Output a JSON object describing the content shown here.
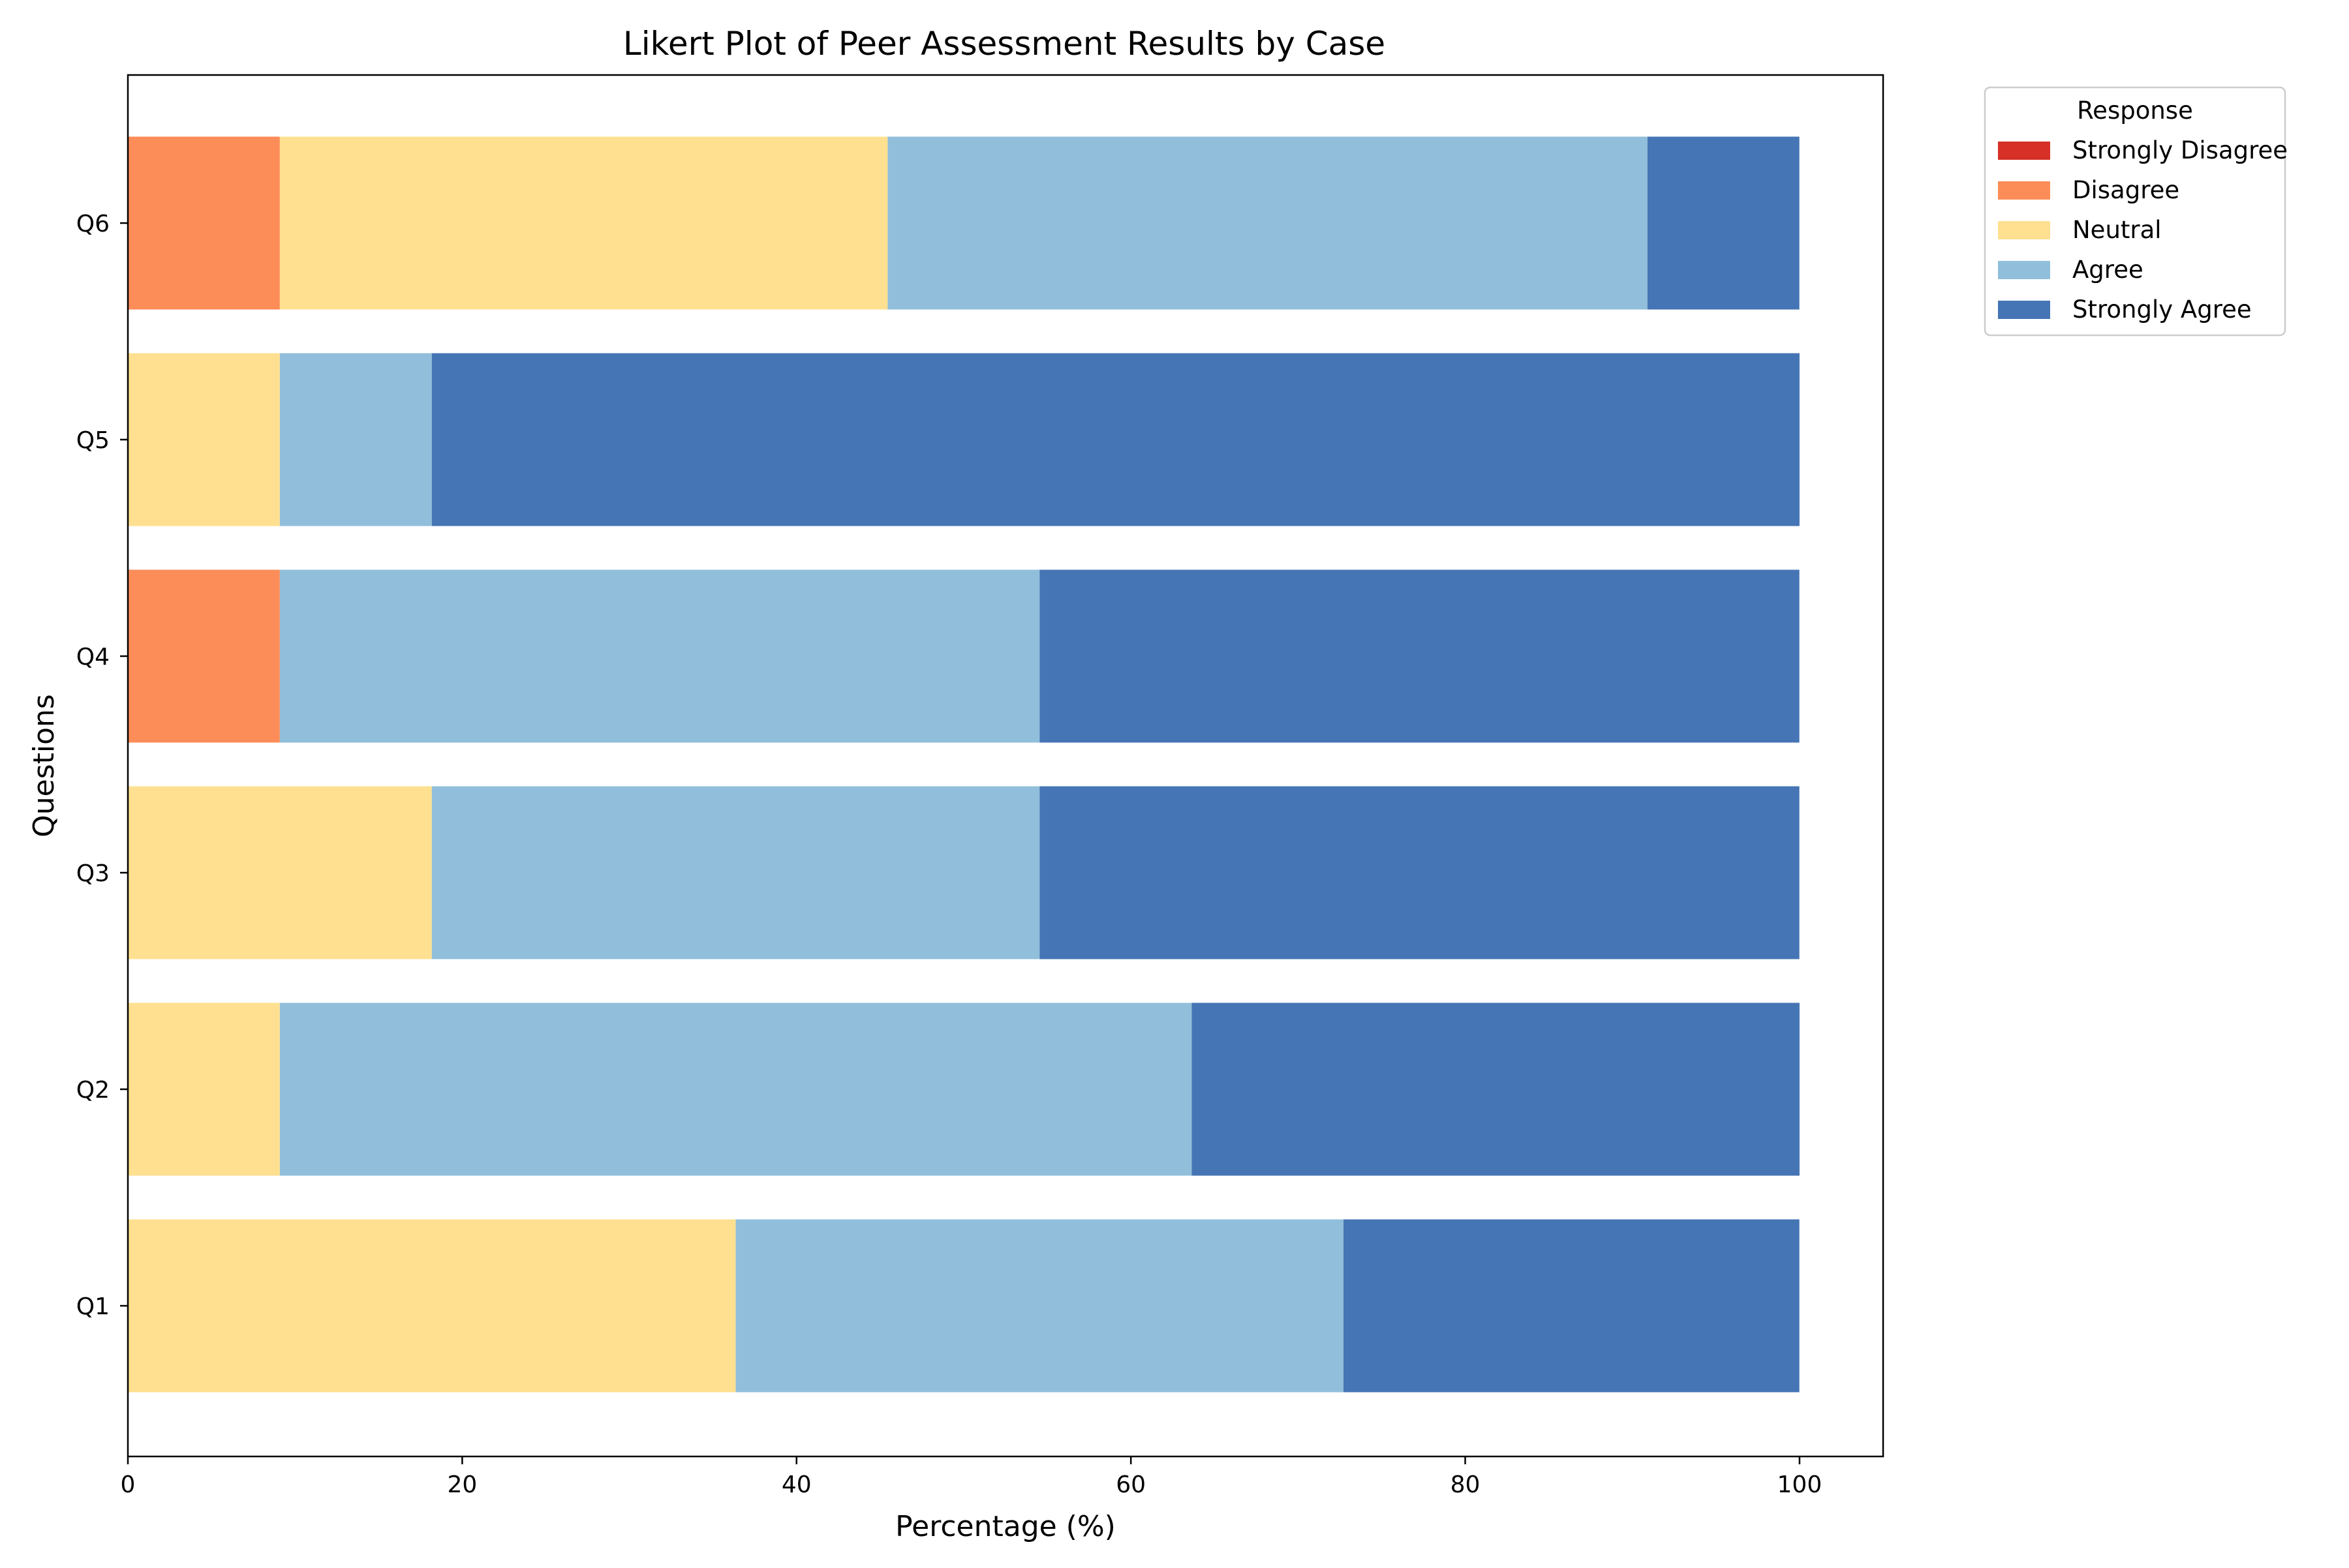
{
  "chart_data": {
    "type": "bar",
    "orientation": "horizontal",
    "stacked": true,
    "title": "Likert Plot of Peer Assessment Results by Case",
    "xlabel": "Percentage (%)",
    "ylabel": "Questions",
    "xlim": [
      0,
      105
    ],
    "xticks": [
      0,
      20,
      40,
      60,
      80,
      100
    ],
    "grid": false,
    "categories": [
      "Q1",
      "Q2",
      "Q3",
      "Q4",
      "Q5",
      "Q6"
    ],
    "legend": {
      "title": "Response",
      "placement": "outside-top-right"
    },
    "series": [
      {
        "name": "Strongly Disagree",
        "color": "#d73027",
        "values": [
          0,
          0,
          0,
          0,
          0,
          0
        ]
      },
      {
        "name": "Disagree",
        "color": "#fc8d59",
        "values": [
          0,
          0,
          0,
          9.09,
          0,
          9.09
        ]
      },
      {
        "name": "Neutral",
        "color": "#fee090",
        "values": [
          36.36,
          9.09,
          18.18,
          0,
          9.09,
          36.36
        ]
      },
      {
        "name": "Agree",
        "color": "#91bfdb",
        "values": [
          36.36,
          54.55,
          36.36,
          45.45,
          9.09,
          45.45
        ]
      },
      {
        "name": "Strongly Agree",
        "color": "#4575b4",
        "values": [
          27.27,
          36.36,
          45.45,
          45.45,
          81.82,
          9.09
        ]
      }
    ]
  }
}
